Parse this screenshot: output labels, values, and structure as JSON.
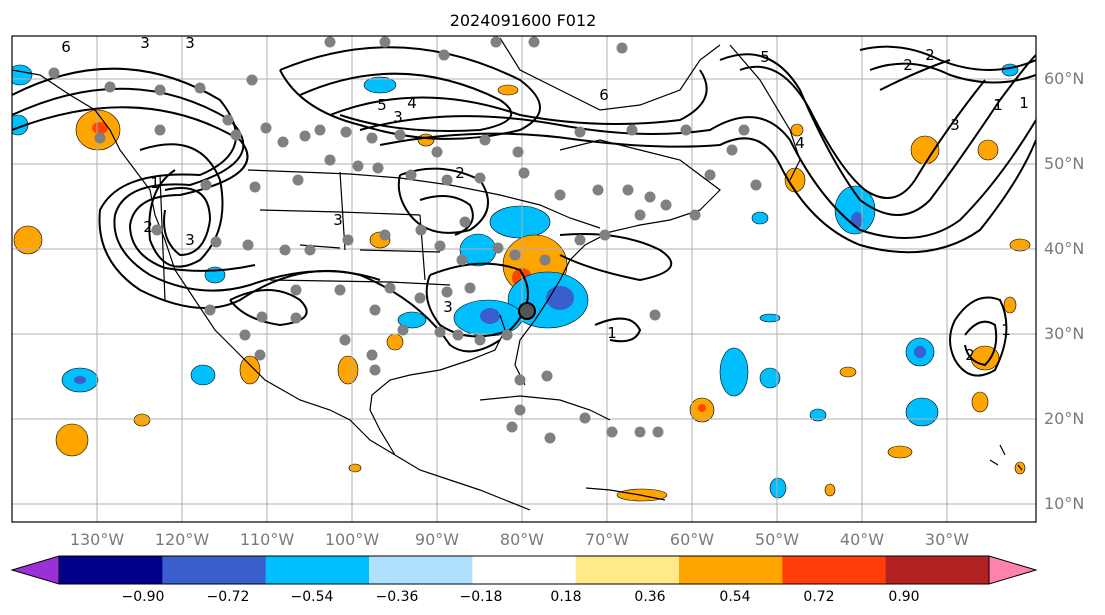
{
  "map": {
    "title": "2024091600 F012",
    "lon_labels": [
      "130°W",
      "120°W",
      "110°W",
      "100°W",
      "90°W",
      "80°W",
      "70°W",
      "60°W",
      "50°W",
      "40°W",
      "30°W"
    ],
    "lat_labels": [
      "60°N",
      "50°N",
      "40°N",
      "30°N",
      "20°N",
      "10°N"
    ],
    "contour_labels": [
      "6",
      "3",
      "3",
      "1",
      "2",
      "3",
      "4",
      "5",
      "6",
      "3",
      "2",
      "1",
      "3",
      "2",
      "1",
      "3",
      "4",
      "5",
      "1",
      "1",
      "2",
      "2",
      "3"
    ],
    "colorbar": {
      "ticks": [
        "−0.90",
        "−0.72",
        "−0.54",
        "−0.36",
        "−0.18",
        "0.18",
        "0.36",
        "0.54",
        "0.72",
        "0.90"
      ],
      "colors": [
        "#9b30d9",
        "#00008b",
        "#3a5fcd",
        "#00bfff",
        "#b0e2ff",
        "#ffffff",
        "#ffe98a",
        "#ffa500",
        "#ff3c0a",
        "#b22222",
        "#ff82ab"
      ]
    },
    "shade_colors": {
      "neg_light": "#00bfff",
      "neg_mid": "#3a5fcd",
      "neg_dark": "#6a3fd0",
      "pos_light": "#ffa500",
      "pos_mid": "#ff4500"
    }
  }
}
